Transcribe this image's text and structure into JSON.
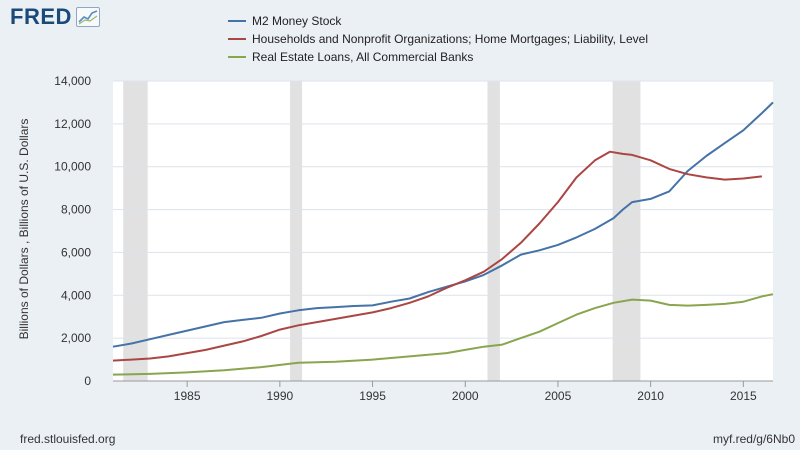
{
  "brand": {
    "name": "FRED",
    "mark_icon": "chart-line-icon"
  },
  "footer": {
    "source": "fred.stlouisfed.org",
    "short_link": "myf.red/g/6Nb0"
  },
  "colors": {
    "background": "#ebf0f5",
    "plot_background": "#ffffff",
    "recession": "#e1e1e1",
    "grid": "#dde3ea"
  },
  "chart_data": {
    "type": "line",
    "ylabel": "Billions of Dollars , Billions of U.S. Dollars",
    "xlabel": "",
    "xlim": [
      1981,
      2016.6
    ],
    "ylim": [
      0,
      14000
    ],
    "x_ticks": [
      1985,
      1990,
      1995,
      2000,
      2005,
      2010,
      2015
    ],
    "y_ticks": [
      0,
      2000,
      4000,
      6000,
      8000,
      10000,
      12000,
      14000
    ],
    "y_tick_labels": [
      "0",
      "2,000",
      "4,000",
      "6,000",
      "8,000",
      "10,000",
      "12,000",
      "14,000"
    ],
    "grid": true,
    "legend_position": "top",
    "recessions": [
      [
        1981.55,
        1982.87
      ],
      [
        1990.55,
        1991.2
      ],
      [
        2001.2,
        2001.87
      ],
      [
        2007.95,
        2009.45
      ]
    ],
    "series": [
      {
        "name": "M2 Money Stock",
        "color": "#4572a7",
        "points": [
          [
            1981.0,
            1600
          ],
          [
            1982.0,
            1750
          ],
          [
            1983.0,
            1950
          ],
          [
            1984.0,
            2150
          ],
          [
            1985.0,
            2350
          ],
          [
            1986.0,
            2550
          ],
          [
            1987.0,
            2750
          ],
          [
            1988.0,
            2850
          ],
          [
            1989.0,
            2950
          ],
          [
            1990.0,
            3150
          ],
          [
            1991.0,
            3300
          ],
          [
            1992.0,
            3400
          ],
          [
            1993.0,
            3450
          ],
          [
            1994.0,
            3500
          ],
          [
            1995.0,
            3530
          ],
          [
            1996.0,
            3700
          ],
          [
            1997.0,
            3850
          ],
          [
            1998.0,
            4150
          ],
          [
            1999.0,
            4400
          ],
          [
            2000.0,
            4650
          ],
          [
            2001.0,
            4950
          ],
          [
            2002.0,
            5400
          ],
          [
            2003.0,
            5900
          ],
          [
            2004.0,
            6100
          ],
          [
            2005.0,
            6350
          ],
          [
            2006.0,
            6700
          ],
          [
            2007.0,
            7100
          ],
          [
            2008.0,
            7600
          ],
          [
            2008.5,
            8000
          ],
          [
            2009.0,
            8350
          ],
          [
            2010.0,
            8500
          ],
          [
            2011.0,
            8850
          ],
          [
            2012.0,
            9800
          ],
          [
            2013.0,
            10500
          ],
          [
            2014.0,
            11100
          ],
          [
            2015.0,
            11700
          ],
          [
            2016.0,
            12500
          ],
          [
            2016.6,
            13000
          ]
        ]
      },
      {
        "name": "Households and Nonprofit Organizations; Home Mortgages; Liability, Level",
        "color": "#aa4643",
        "points": [
          [
            1981.0,
            950
          ],
          [
            1982.0,
            1000
          ],
          [
            1983.0,
            1050
          ],
          [
            1984.0,
            1150
          ],
          [
            1985.0,
            1300
          ],
          [
            1986.0,
            1450
          ],
          [
            1987.0,
            1650
          ],
          [
            1988.0,
            1850
          ],
          [
            1989.0,
            2100
          ],
          [
            1990.0,
            2400
          ],
          [
            1991.0,
            2600
          ],
          [
            1992.0,
            2750
          ],
          [
            1993.0,
            2900
          ],
          [
            1994.0,
            3050
          ],
          [
            1995.0,
            3200
          ],
          [
            1996.0,
            3400
          ],
          [
            1997.0,
            3650
          ],
          [
            1998.0,
            3950
          ],
          [
            1999.0,
            4350
          ],
          [
            2000.0,
            4700
          ],
          [
            2001.0,
            5100
          ],
          [
            2002.0,
            5700
          ],
          [
            2003.0,
            6450
          ],
          [
            2004.0,
            7350
          ],
          [
            2005.0,
            8350
          ],
          [
            2006.0,
            9500
          ],
          [
            2007.0,
            10300
          ],
          [
            2007.8,
            10700
          ],
          [
            2008.5,
            10600
          ],
          [
            2009.0,
            10550
          ],
          [
            2010.0,
            10300
          ],
          [
            2011.0,
            9900
          ],
          [
            2012.0,
            9650
          ],
          [
            2013.0,
            9500
          ],
          [
            2014.0,
            9400
          ],
          [
            2015.0,
            9450
          ],
          [
            2016.0,
            9550
          ]
        ]
      },
      {
        "name": "Real Estate Loans, All Commercial Banks",
        "color": "#89a54e",
        "points": [
          [
            1981.0,
            300
          ],
          [
            1983.0,
            330
          ],
          [
            1985.0,
            400
          ],
          [
            1987.0,
            500
          ],
          [
            1989.0,
            650
          ],
          [
            1991.0,
            850
          ],
          [
            1993.0,
            900
          ],
          [
            1995.0,
            1000
          ],
          [
            1997.0,
            1150
          ],
          [
            1999.0,
            1300
          ],
          [
            2000.0,
            1450
          ],
          [
            2001.0,
            1600
          ],
          [
            2002.0,
            1700
          ],
          [
            2003.0,
            2000
          ],
          [
            2004.0,
            2300
          ],
          [
            2005.0,
            2700
          ],
          [
            2006.0,
            3100
          ],
          [
            2007.0,
            3400
          ],
          [
            2008.0,
            3650
          ],
          [
            2009.0,
            3800
          ],
          [
            2010.0,
            3750
          ],
          [
            2011.0,
            3550
          ],
          [
            2012.0,
            3520
          ],
          [
            2013.0,
            3550
          ],
          [
            2014.0,
            3600
          ],
          [
            2015.0,
            3700
          ],
          [
            2016.0,
            3950
          ],
          [
            2016.6,
            4050
          ]
        ]
      }
    ]
  }
}
